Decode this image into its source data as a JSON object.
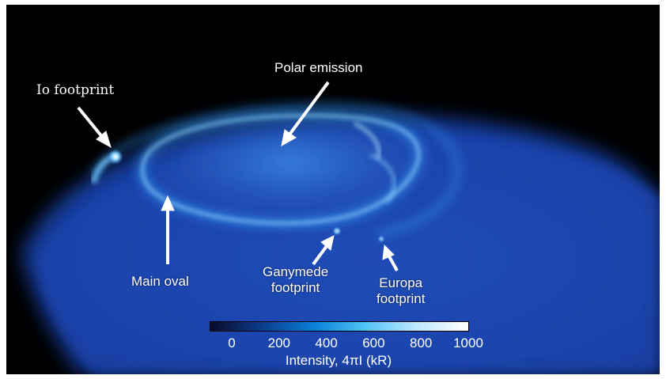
{
  "labels": {
    "polar_emission": "Polar emission",
    "io_footprint": "Io footprint",
    "main_oval": "Main oval",
    "ganymede_line1": "Ganymede",
    "ganymede_line2": "footprint",
    "europa_line1": "Europa",
    "europa_line2": "footprint"
  },
  "colorbar": {
    "title": "Intensity, 4πI (kR)",
    "ticks": [
      "0",
      "200",
      "400",
      "600",
      "800",
      "1000"
    ],
    "colors": [
      "#0a0a2a",
      "#0b3c8c",
      "#0a7fd8",
      "#4fc3f7",
      "#bfe8ff",
      "#ffffff"
    ]
  },
  "colors": {
    "background": "#000000",
    "frame": "#ffffff",
    "planet_disk": "#1747b8",
    "aurora_glow": "#44b4ff",
    "label_text": "#ffffff"
  }
}
